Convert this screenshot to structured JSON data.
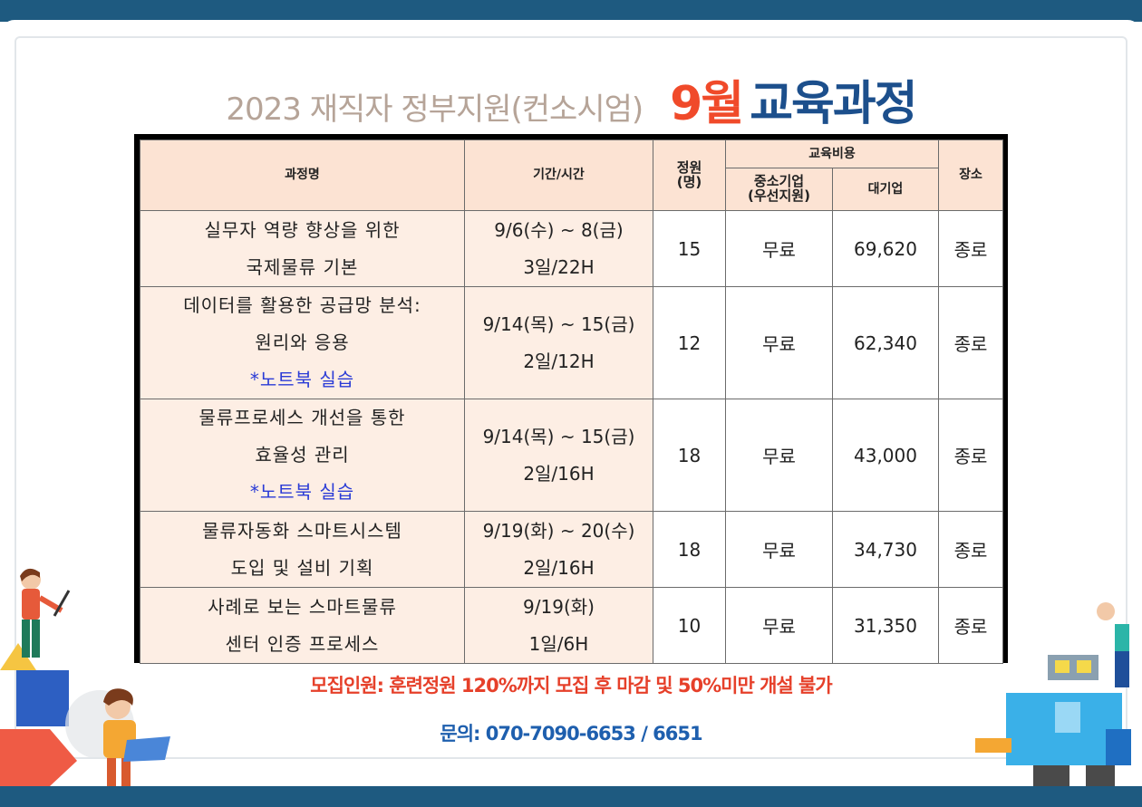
{
  "title": {
    "part1": "2023 재직자 정부지원(컨소시엄)",
    "part2": "9월",
    "part3": "교육과정"
  },
  "table": {
    "headers": {
      "course": "과정명",
      "period": "기간/시간",
      "capacity": "정원\n(명)",
      "cost": "교육비용",
      "sme": "중소기업\n(우선지원)",
      "large": "대기업",
      "place": "장소"
    },
    "rows": [
      {
        "name": [
          "실무자 역량 향상을 위한",
          "국제물류 기본"
        ],
        "note": "",
        "period": [
          "9/6(수) ~ 8(금)",
          "3일/22H"
        ],
        "capacity": "15",
        "sme": "무료",
        "large": "69,620",
        "place": "종로"
      },
      {
        "name": [
          "데이터를 활용한 공급망 분석:",
          "원리와 응용"
        ],
        "note": "*노트북 실습",
        "period": [
          "9/14(목) ~ 15(금)",
          "2일/12H"
        ],
        "capacity": "12",
        "sme": "무료",
        "large": "62,340",
        "place": "종로"
      },
      {
        "name": [
          "물류프로세스 개선을 통한",
          "효율성 관리"
        ],
        "note": "*노트북 실습",
        "period": [
          "9/14(목) ~ 15(금)",
          "2일/16H"
        ],
        "capacity": "18",
        "sme": "무료",
        "large": "43,000",
        "place": "종로"
      },
      {
        "name": [
          "물류자동화 스마트시스템",
          "도입 및 설비 기획"
        ],
        "note": "",
        "period": [
          "9/19(화) ~ 20(수)",
          "2일/16H"
        ],
        "capacity": "18",
        "sme": "무료",
        "large": "34,730",
        "place": "종로"
      },
      {
        "name": [
          "사례로 보는 스마트물류",
          "센터 인증 프로세스"
        ],
        "note": "",
        "period": [
          "9/19(화)",
          "1일/6H"
        ],
        "capacity": "10",
        "sme": "무료",
        "large": "31,350",
        "place": "종로"
      }
    ]
  },
  "recruit": "모집인원: 훈련정원 120%까지 모집 후 마감 및 50%미만 개설 불가",
  "contact": "문의: 070-7090-6653 / 6651",
  "colors": {
    "frame": "#1e5a80",
    "accent_red": "#f04a2a",
    "accent_blue": "#1c4f8c",
    "header_bg": "#fce3d3",
    "note_blue": "#2a3bd6"
  }
}
